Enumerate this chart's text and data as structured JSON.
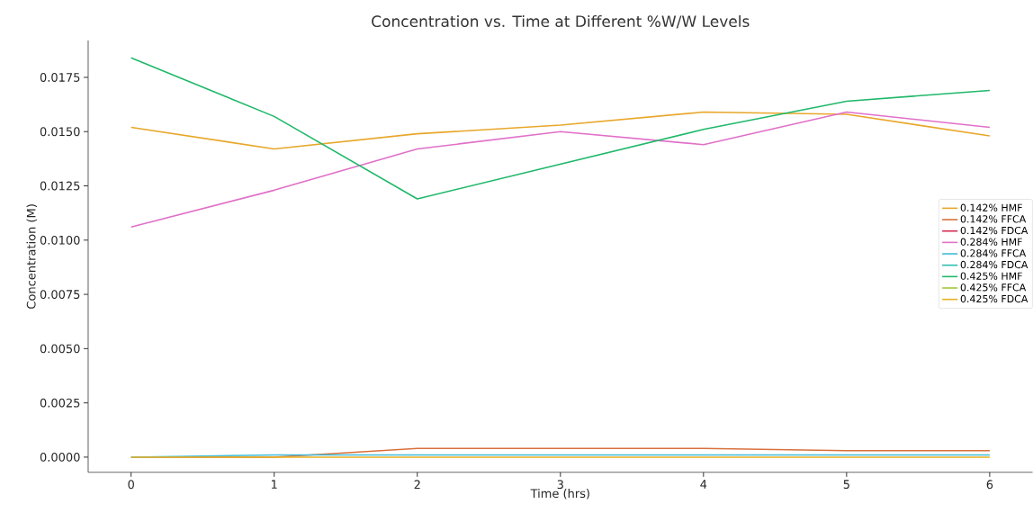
{
  "chart_data": {
    "type": "line",
    "title": "Concentration vs. Time at Different %W/W Levels",
    "xlabel": "Time (hrs)",
    "ylabel": "Concentration (M)",
    "x": [
      0,
      1,
      2,
      3,
      4,
      5,
      6
    ],
    "xlim": [
      -0.3,
      6.3
    ],
    "ylim": [
      -0.0007,
      0.0192
    ],
    "xticks": [
      0,
      1,
      2,
      3,
      4,
      5,
      6
    ],
    "yticks": [
      {
        "value": 0,
        "label": "0.0000"
      },
      {
        "value": 0.0025,
        "label": "0.0025"
      },
      {
        "value": 0.005,
        "label": "0.0050"
      },
      {
        "value": 0.0075,
        "label": "0.0075"
      },
      {
        "value": 0.01,
        "label": "0.0100"
      },
      {
        "value": 0.0125,
        "label": "0.0125"
      },
      {
        "value": 0.015,
        "label": "0.0150"
      },
      {
        "value": 0.0175,
        "label": "0.0175"
      }
    ],
    "legend": "right",
    "grid": false,
    "series": [
      {
        "name": "0.142% HMF",
        "color": "#e8a72a",
        "values": [
          0.0152,
          0.0142,
          0.0149,
          0.0153,
          0.0159,
          0.0158,
          0.0148
        ]
      },
      {
        "name": "0.142% FFCA",
        "color": "#d9703b",
        "values": [
          0,
          0,
          0.0004,
          0.0004,
          0.0004,
          0.0003,
          0.0003
        ]
      },
      {
        "name": "0.142% FDCA",
        "color": "#d6294f",
        "values": [
          null,
          null,
          null,
          null,
          null,
          null,
          null
        ]
      },
      {
        "name": "0.284% HMF",
        "color": "#e070c8",
        "values": [
          0.0106,
          0.0123,
          0.0142,
          0.015,
          0.0144,
          0.0159,
          0.0152
        ]
      },
      {
        "name": "0.284% FFCA",
        "color": "#40bcd8",
        "values": [
          0,
          0.0001,
          0.0001,
          0.0001,
          0.0001,
          0.0001,
          0.0001
        ]
      },
      {
        "name": "0.284% FDCA",
        "color": "#2bbfb0",
        "values": [
          null,
          null,
          null,
          null,
          null,
          null,
          null
        ]
      },
      {
        "name": "0.425% HMF",
        "color": "#1fb86a",
        "values": [
          0.0184,
          0.0157,
          0.0119,
          0.0135,
          0.0151,
          0.0164,
          0.0169
        ]
      },
      {
        "name": "0.425% FFCA",
        "color": "#a6c93a",
        "values": [
          null,
          null,
          null,
          null,
          null,
          null,
          null
        ]
      },
      {
        "name": "0.425% FDCA",
        "color": "#e8b020",
        "values": [
          0,
          0,
          0,
          0,
          0,
          0,
          0
        ]
      }
    ]
  }
}
